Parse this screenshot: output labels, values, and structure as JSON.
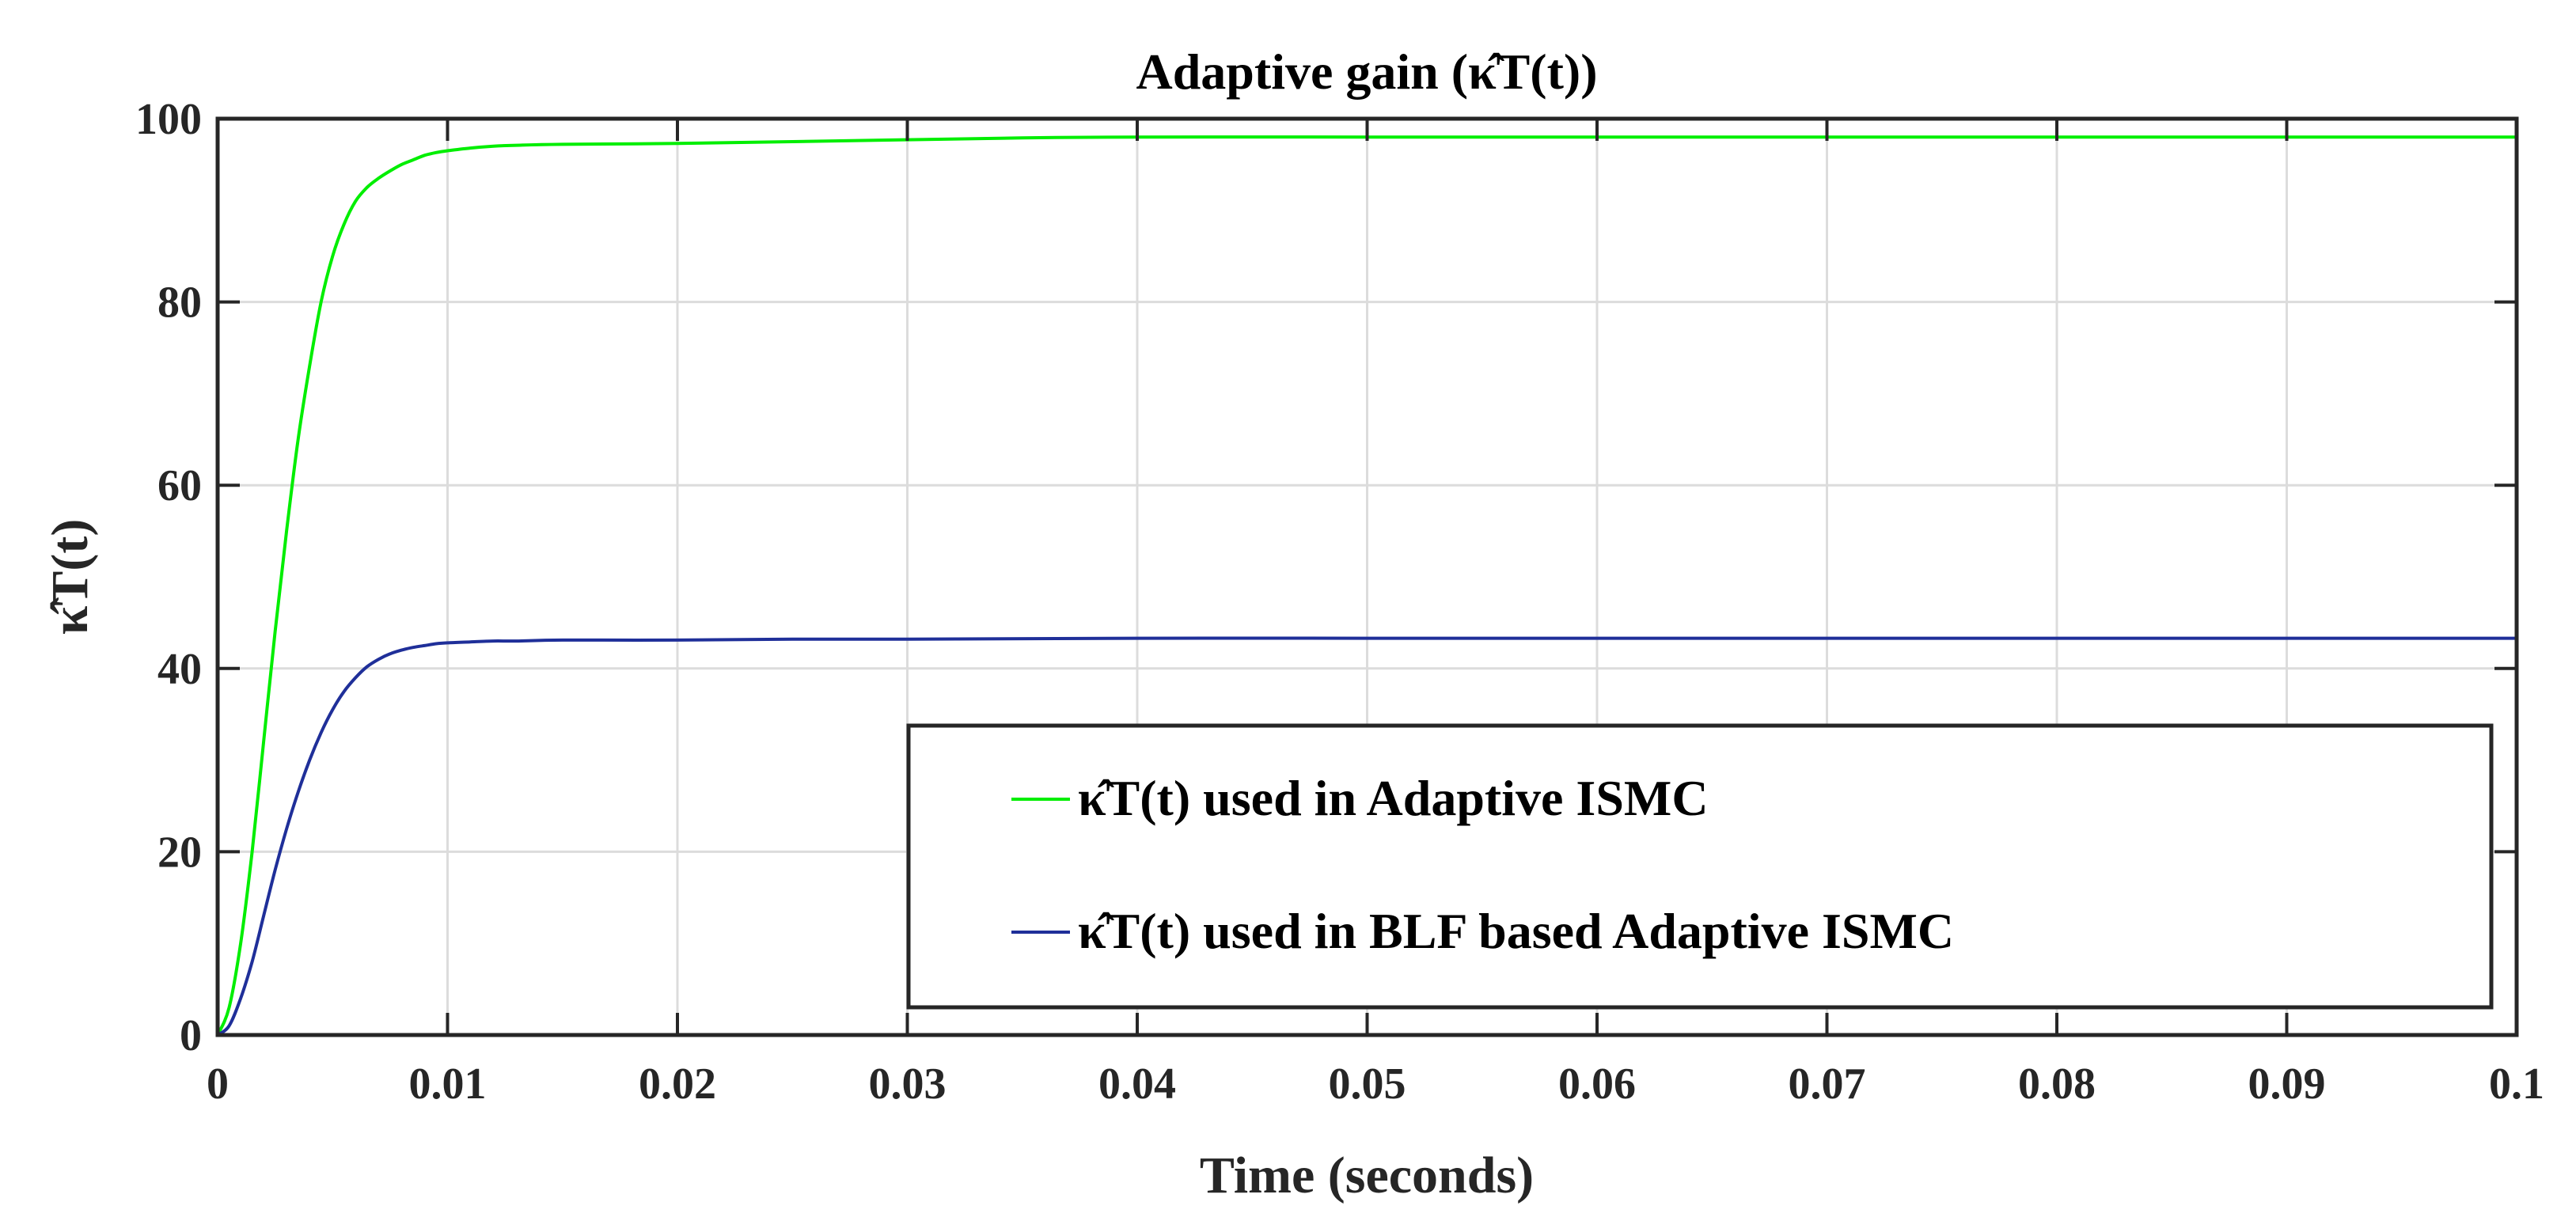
{
  "chart_data": {
    "type": "line",
    "title": "Adaptive gain (κ̂T(t))",
    "xlabel": "Time (seconds)",
    "ylabel": "κ̂T(t)",
    "xlim": [
      0,
      0.1
    ],
    "ylim": [
      0,
      100
    ],
    "x_ticks": [
      0,
      0.01,
      0.02,
      0.03,
      0.04,
      0.05,
      0.06,
      0.07,
      0.08,
      0.09,
      0.1
    ],
    "x_tick_labels": [
      "0",
      "0.01",
      "0.02",
      "0.03",
      "0.04",
      "0.05",
      "0.06",
      "0.07",
      "0.08",
      "0.09",
      "0.1"
    ],
    "y_ticks": [
      0,
      20,
      40,
      60,
      80,
      100
    ],
    "y_tick_labels": [
      "0",
      "20",
      "40",
      "60",
      "80",
      "100"
    ],
    "grid": true,
    "legend_position": "bottom-right",
    "series": [
      {
        "name": "κ̂T(t) used in Adaptive ISMC",
        "legend_label": "κ̂T(t) used in Adaptive ISMC",
        "color": "#00ee00",
        "x": [
          0,
          0.0005,
          0.001,
          0.0015,
          0.002,
          0.0025,
          0.003,
          0.0035,
          0.004,
          0.0045,
          0.005,
          0.0055,
          0.006,
          0.0065,
          0.007,
          0.0075,
          0.008,
          0.0085,
          0.009,
          0.0095,
          0.01,
          0.011,
          0.012,
          0.013,
          0.015,
          0.02,
          0.025,
          0.03,
          0.035,
          0.04,
          0.05,
          0.06,
          0.07,
          0.08,
          0.09,
          0.1
        ],
        "values": [
          0,
          3,
          10,
          20,
          32,
          44,
          55,
          65,
          73,
          80,
          85,
          88.5,
          91,
          92.5,
          93.5,
          94.3,
          95,
          95.5,
          96,
          96.3,
          96.5,
          96.8,
          97,
          97.1,
          97.2,
          97.3,
          97.5,
          97.7,
          97.9,
          98,
          98,
          98,
          98,
          98,
          98,
          98
        ]
      },
      {
        "name": "κ̂T(t) used in BLF based Adaptive ISMC",
        "legend_label": "κ̂T(t) used in BLF based Adaptive ISMC",
        "color": "#1f2f99",
        "x": [
          0,
          0.0005,
          0.001,
          0.0015,
          0.002,
          0.0025,
          0.003,
          0.0035,
          0.004,
          0.0045,
          0.005,
          0.0055,
          0.006,
          0.0065,
          0.007,
          0.0075,
          0.008,
          0.0085,
          0.009,
          0.0095,
          0.01,
          0.011,
          0.012,
          0.013,
          0.015,
          0.02,
          0.025,
          0.03,
          0.04,
          0.05,
          0.06,
          0.07,
          0.08,
          0.09,
          0.1
        ],
        "values": [
          0,
          1,
          4,
          8,
          13,
          18,
          22.5,
          26.5,
          30,
          33,
          35.5,
          37.5,
          39,
          40.2,
          41,
          41.6,
          42,
          42.3,
          42.5,
          42.7,
          42.8,
          42.9,
          43,
          43,
          43.1,
          43.1,
          43.2,
          43.2,
          43.3,
          43.3,
          43.3,
          43.3,
          43.3,
          43.3,
          43.3
        ]
      }
    ]
  }
}
